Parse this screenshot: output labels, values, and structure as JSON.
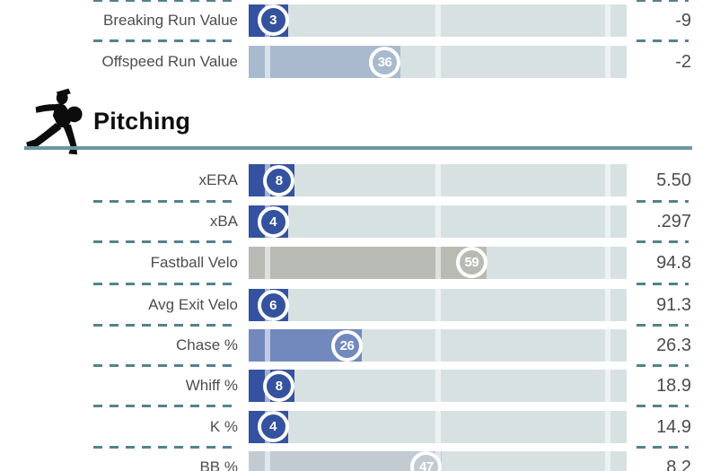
{
  "header": {
    "icon": "pitcher-icon"
  },
  "style": {
    "track_color": "#d8e1e2",
    "dash_color": "#54828e",
    "rule_color": "#6b969d",
    "label_color": "#4d4d4d",
    "value_color": "#4c4c4c",
    "bubble_text_color": "#ffffff",
    "tier_colors": {
      "poor": "#3452a0",
      "below_avg": "#7289be",
      "low_mid": "#a9bace",
      "near_avg": "#c2cbd2",
      "average": "#b8bbb3"
    }
  },
  "chart_data": {
    "type": "bar",
    "subtype": "percentile-rankings",
    "xlim": [
      0,
      100
    ],
    "reference_lines_pct": [
      5,
      50,
      95
    ],
    "legend": "bubble shows league percentile, right column shows raw stat value",
    "sections": [
      {
        "title": "",
        "rows": [
          {
            "label": "Breaking Run Value",
            "percentile": 3,
            "value": "-9",
            "color": "#3452a0"
          },
          {
            "label": "Offspeed Run Value",
            "percentile": 36,
            "value": "-2",
            "color": "#a9bace"
          }
        ]
      },
      {
        "title": "Pitching",
        "rows": [
          {
            "label": "xERA",
            "percentile": 8,
            "value": "5.50",
            "color": "#3452a0"
          },
          {
            "label": "xBA",
            "percentile": 4,
            "value": ".297",
            "color": "#3452a0"
          },
          {
            "label": "Fastball Velo",
            "percentile": 59,
            "value": "94.8",
            "color": "#b8bbb3"
          },
          {
            "label": "Avg Exit Velo",
            "percentile": 6,
            "value": "91.3",
            "color": "#3452a0"
          },
          {
            "label": "Chase %",
            "percentile": 26,
            "value": "26.3",
            "color": "#7289be"
          },
          {
            "label": "Whiff %",
            "percentile": 8,
            "value": "18.9",
            "color": "#3452a0"
          },
          {
            "label": "K %",
            "percentile": 4,
            "value": "14.9",
            "color": "#3452a0"
          },
          {
            "label": "BB %",
            "percentile": 47,
            "value": "8.2",
            "color": "#c2cbd2"
          }
        ]
      }
    ]
  }
}
